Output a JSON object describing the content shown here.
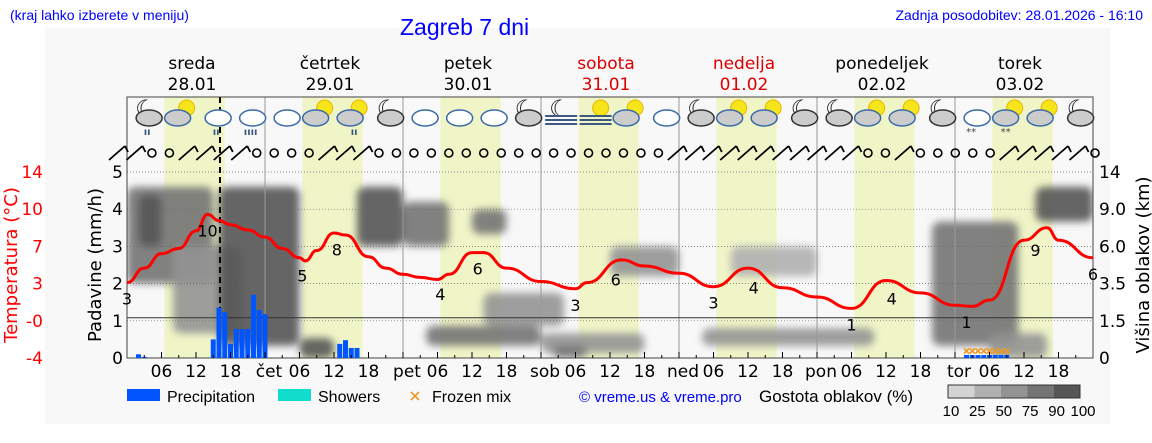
{
  "header": {
    "menu_hint": "(kraj lahko izberete v meniju)",
    "title": "Zagreb 7 dni",
    "updated": "Zadnja posodobitev: 28.01.2026 - 16:10"
  },
  "days": [
    {
      "name": "sreda",
      "date": "28.01",
      "weekend": false
    },
    {
      "name": "četrtek",
      "date": "29.01",
      "weekend": false
    },
    {
      "name": "petek",
      "date": "30.01",
      "weekend": false
    },
    {
      "name": "sobota",
      "date": "31.01",
      "weekend": true
    },
    {
      "name": "nedelja",
      "date": "01.02",
      "weekend": true
    },
    {
      "name": "ponedeljek",
      "date": "02.02",
      "weekend": false
    },
    {
      "name": "torek",
      "date": "03.02",
      "weekend": false
    }
  ],
  "colors": {
    "temperature": "#ff0000",
    "precipitation": "#0055ff",
    "showers": "#11ddcc",
    "frozen_mix": "#ee9922",
    "daylight": "#f0f5c8",
    "link": "#0000ff",
    "weekend": "#dd0000"
  },
  "chart_data": {
    "type": "meteogram",
    "title": "Zagreb 7 dni",
    "x_axis": {
      "start": "28.01.2026 00:00",
      "end": "04.02.2026 00:00",
      "tick_step_hours": 6,
      "day_ticks": [
        "čet",
        "pet",
        "sob",
        "ned",
        "pon",
        "tor"
      ],
      "hour_ticks": [
        "06",
        "12",
        "18"
      ]
    },
    "now_marker": "28.01.2026 16:10",
    "y_left_temperature": {
      "label": "Temperatura (°C)",
      "range": [
        -4,
        14
      ],
      "ticks": [
        "-4",
        "-0",
        "3",
        "7",
        "10",
        "14"
      ]
    },
    "y_left_precip": {
      "label": "Padavine (mm/h)",
      "range": [
        0,
        5
      ],
      "ticks": [
        "0",
        "1",
        "2",
        "3",
        "4",
        "5"
      ]
    },
    "y_right_cloud": {
      "label": "Višina oblakov (km)",
      "ticks": [
        "0",
        "1.5",
        "3.5",
        "6.0",
        "9.0",
        "14"
      ],
      "tick_values": [
        0,
        1.5,
        3.5,
        6,
        9,
        14
      ]
    },
    "reference_line_km": 1.5,
    "daylight_hours": [
      6.5,
      17
    ],
    "temperature": {
      "hours": [
        0,
        3,
        6,
        9,
        12,
        14,
        16,
        18,
        21,
        24,
        27,
        30,
        31,
        33,
        36,
        38,
        42,
        45,
        48,
        51,
        54,
        56,
        60,
        62,
        66,
        72,
        78,
        80,
        86,
        90,
        96,
        102,
        108,
        114,
        120,
        126,
        132,
        138,
        144,
        147,
        150,
        156,
        160,
        162,
        168
      ],
      "values": [
        3.3,
        4.7,
        6.1,
        6.6,
        8.3,
        9.9,
        9.3,
        8.9,
        8.4,
        7.7,
        6.6,
        5.7,
        5.4,
        6.4,
        8.1,
        7.9,
        5.8,
        4.7,
        4.1,
        3.8,
        3.6,
        4.1,
        6.2,
        6.2,
        4.7,
        3.4,
        2.7,
        3.3,
        5.5,
        4.9,
        4.2,
        2.9,
        4.7,
        2.8,
        1.9,
        0.8,
        3.5,
        2.3,
        1.1,
        1.0,
        1.6,
        7.4,
        8.6,
        7.4,
        5.7
      ]
    },
    "temperature_labels": [
      {
        "hour": 0,
        "text": "3"
      },
      {
        "hour": 14,
        "text": "10"
      },
      {
        "hour": 30.5,
        "text": "5"
      },
      {
        "hour": 36.5,
        "text": "8"
      },
      {
        "hour": 54.5,
        "text": "4"
      },
      {
        "hour": 61,
        "text": "6"
      },
      {
        "hour": 78,
        "text": "3"
      },
      {
        "hour": 85,
        "text": "6"
      },
      {
        "hour": 102,
        "text": "3"
      },
      {
        "hour": 109,
        "text": "4"
      },
      {
        "hour": 126,
        "text": "1"
      },
      {
        "hour": 133,
        "text": "4"
      },
      {
        "hour": 146,
        "text": "1"
      },
      {
        "hour": 158,
        "text": "9"
      },
      {
        "hour": 168,
        "text": "6"
      }
    ],
    "precipitation": {
      "hours": [
        2,
        3,
        15,
        16,
        17,
        18,
        19,
        20,
        21,
        22,
        23,
        24,
        37,
        38,
        39,
        40
      ],
      "values": [
        0.1,
        0.03,
        0.5,
        1.35,
        1.23,
        0.38,
        0.78,
        0.78,
        0.78,
        1.7,
        1.29,
        1.18,
        0.38,
        0.48,
        0.27,
        0.27
      ]
    },
    "frozen_mix": {
      "hours": [
        146,
        147,
        148,
        149,
        150,
        151,
        152,
        153
      ],
      "values": [
        0.08,
        0.08,
        0.08,
        0.08,
        0.08,
        0.08,
        0.08,
        0.08
      ]
    },
    "cloud_density": [
      {
        "hours": [
          0,
          15
        ],
        "km": [
          3.5,
          12
        ],
        "percent": 75
      },
      {
        "hours": [
          2,
          6
        ],
        "km": [
          6,
          11
        ],
        "percent": 90
      },
      {
        "hours": [
          8,
          20
        ],
        "km": [
          1,
          6
        ],
        "percent": 50
      },
      {
        "hours": [
          16,
          30
        ],
        "km": [
          0.5,
          12
        ],
        "percent": 90
      },
      {
        "hours": [
          30,
          36
        ],
        "km": [
          0,
          0.8
        ],
        "percent": 90
      },
      {
        "hours": [
          40,
          48
        ],
        "km": [
          6,
          12
        ],
        "percent": 90
      },
      {
        "hours": [
          48,
          56
        ],
        "km": [
          6,
          10
        ],
        "percent": 75
      },
      {
        "hours": [
          60,
          66
        ],
        "km": [
          7,
          9
        ],
        "percent": 75
      },
      {
        "hours": [
          52,
          72
        ],
        "km": [
          0.5,
          1.3
        ],
        "percent": 75
      },
      {
        "hours": [
          62,
          76
        ],
        "km": [
          1.3,
          3
        ],
        "percent": 50
      },
      {
        "hours": [
          72,
          90
        ],
        "km": [
          0.2,
          1.0
        ],
        "percent": 50
      },
      {
        "hours": [
          74,
          80
        ],
        "km": [
          0,
          0.5
        ],
        "percent": 75
      },
      {
        "hours": [
          84,
          96
        ],
        "km": [
          4,
          6
        ],
        "percent": 50
      },
      {
        "hours": [
          100,
          130
        ],
        "km": [
          0.5,
          1.2
        ],
        "percent": 50
      },
      {
        "hours": [
          105,
          120
        ],
        "km": [
          4,
          6
        ],
        "percent": 25
      },
      {
        "hours": [
          140,
          155
        ],
        "km": [
          0.5,
          8
        ],
        "percent": 75
      },
      {
        "hours": [
          150,
          160
        ],
        "km": [
          0,
          1
        ],
        "percent": 50
      },
      {
        "hours": [
          158,
          168
        ],
        "km": [
          8,
          12
        ],
        "percent": 90
      }
    ],
    "weather_icons": [
      "moon-cloud-rain",
      "sun-cloud",
      "cloud-rain",
      "cloud-heavy-rain",
      "cloud",
      "sun-cloud",
      "sun-cloud-rain",
      "moon-cloud",
      "cloud",
      "cloud",
      "cloud",
      "moon-cloud",
      "moon-fog",
      "sun-fog",
      "sun-cloud",
      "cloud",
      "moon-cloud",
      "sun-cloud",
      "sun-cloud",
      "moon-cloud",
      "moon-cloud",
      "sun-cloud",
      "sun-cloud",
      "moon-cloud",
      "cloud-snow",
      "sun-cloud-snow",
      "sun-cloud",
      "moon-cloud"
    ],
    "wind": [
      "barb",
      "barb",
      "calm",
      "calm",
      "barb",
      "barb",
      "barb",
      "barb",
      "calm",
      "calm",
      "calm",
      "calm",
      "barb",
      "barb",
      "barb",
      "calm",
      "calm",
      "calm",
      "calm",
      "calm",
      "calm",
      "calm",
      "calm",
      "calm",
      "calm",
      "calm",
      "calm",
      "calm",
      "calm",
      "calm",
      "calm",
      "calm",
      "barb",
      "barb",
      "barb",
      "barb",
      "barb",
      "barb",
      "barb",
      "barb",
      "barb",
      "barb",
      "barb",
      "calm",
      "calm",
      "barb",
      "calm",
      "calm",
      "calm",
      "calm",
      "calm",
      "barb",
      "barb",
      "barb",
      "barb",
      "barb",
      "calm"
    ],
    "legend": {
      "precipitation": "Precipitation",
      "showers": "Showers",
      "frozen_mix": "Frozen mix",
      "cloud_title": "Gostota oblakov (%)",
      "cloud_scale": [
        "10",
        "25",
        "50",
        "75",
        "90",
        "100"
      ],
      "cloud_colors": [
        "#d3d3d3",
        "#b0b0b0",
        "#939393",
        "#747474",
        "#555555"
      ]
    },
    "copyright": "© vreme.us & vreme.pro"
  }
}
